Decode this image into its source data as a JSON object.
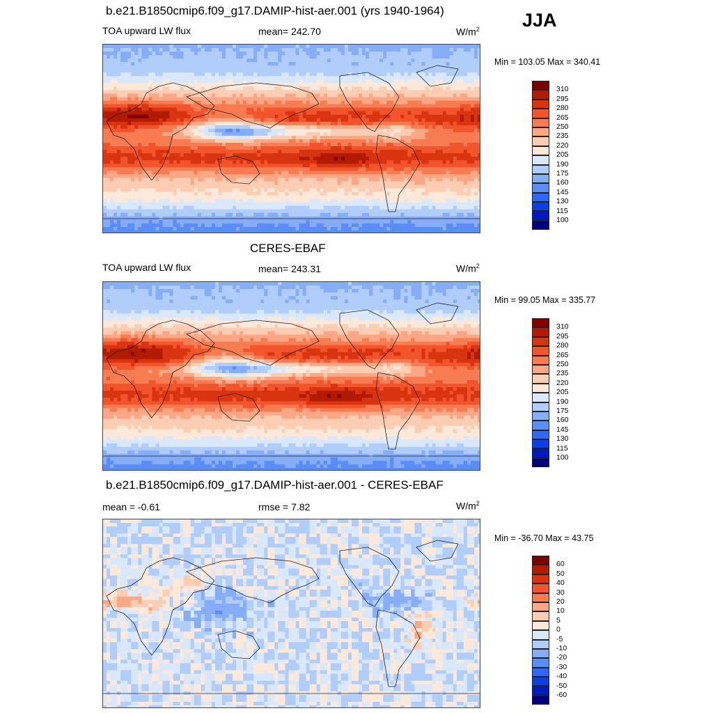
{
  "season": "JJA",
  "colors": {
    "full": [
      "#00007f",
      "#0019bf",
      "#0d3fe6",
      "#2f68f5",
      "#5a8df7",
      "#86adf8",
      "#b1cdfa",
      "#d9e8fb",
      "#fde9da",
      "#fbcdb2",
      "#f9a784",
      "#f77c52",
      "#f2542c",
      "#d93410",
      "#b21a03",
      "#7f0000"
    ],
    "diff": [
      "#00007f",
      "#0019bf",
      "#0d3fe6",
      "#2f68f5",
      "#5a8df7",
      "#86adf8",
      "#b1cdfa",
      "#d9e8fb",
      "#fde9da",
      "#fbcdb2",
      "#f9a784",
      "#f77c52",
      "#f2542c",
      "#d93410",
      "#b21a03",
      "#7f0000"
    ]
  },
  "panels": [
    {
      "title": "b.e21.B1850cmip6.f09_g17.DAMIP-hist-aer.001 (yrs 1940-1964)",
      "left_label": "TOA upward LW flux",
      "center_label": "mean= 242.70",
      "unit": "W/m",
      "unit_sup": "2",
      "minmax": "Min = 103.05 Max = 340.41",
      "colorbar_labels": [
        "310",
        "295",
        "280",
        "265",
        "250",
        "235",
        "220",
        "205",
        "190",
        "175",
        "160",
        "145",
        "130",
        "115",
        "100"
      ]
    },
    {
      "title": "CERES-EBAF",
      "left_label": "TOA upward LW flux",
      "center_label": "mean= 243.31",
      "unit": "W/m",
      "unit_sup": "2",
      "minmax": "Min =  99.05 Max = 335.77",
      "colorbar_labels": [
        "310",
        "295",
        "280",
        "265",
        "250",
        "235",
        "220",
        "205",
        "190",
        "175",
        "160",
        "145",
        "130",
        "115",
        "100"
      ]
    },
    {
      "title": "b.e21.B1850cmip6.f09_g17.DAMIP-hist-aer.001 - CERES-EBAF",
      "left_label": "mean =  -0.61",
      "center_label": "rmse =   7.82",
      "unit": "W/m",
      "unit_sup": "2",
      "minmax": "Min = -36.70 Max =  43.75",
      "colorbar_labels": [
        "60",
        "50",
        "40",
        "30",
        "20",
        "10",
        "5",
        "0",
        "-5",
        "-10",
        "-20",
        "-30",
        "-40",
        "-50",
        "-60"
      ]
    }
  ],
  "chart_data": [
    {
      "type": "heatmap",
      "title": "b.e21.B1850cmip6.f09_g17.DAMIP-hist-aer.001 (yrs 1940-1964)",
      "variable": "TOA upward LW flux",
      "units": "W/m2",
      "mean": 242.7,
      "min": 103.05,
      "max": 340.41,
      "levels": [
        100,
        115,
        130,
        145,
        160,
        175,
        190,
        205,
        220,
        235,
        250,
        265,
        280,
        295,
        310
      ]
    },
    {
      "type": "heatmap",
      "title": "CERES-EBAF",
      "variable": "TOA upward LW flux",
      "units": "W/m2",
      "mean": 243.31,
      "min": 99.05,
      "max": 335.77,
      "levels": [
        100,
        115,
        130,
        145,
        160,
        175,
        190,
        205,
        220,
        235,
        250,
        265,
        280,
        295,
        310
      ]
    },
    {
      "type": "heatmap",
      "title": "b.e21.B1850cmip6.f09_g17.DAMIP-hist-aer.001 - CERES-EBAF",
      "units": "W/m2",
      "mean": -0.61,
      "rmse": 7.82,
      "min": -36.7,
      "max": 43.75,
      "levels": [
        -60,
        -50,
        -40,
        -30,
        -20,
        -10,
        -5,
        0,
        5,
        10,
        20,
        30,
        40,
        50,
        60
      ]
    }
  ]
}
